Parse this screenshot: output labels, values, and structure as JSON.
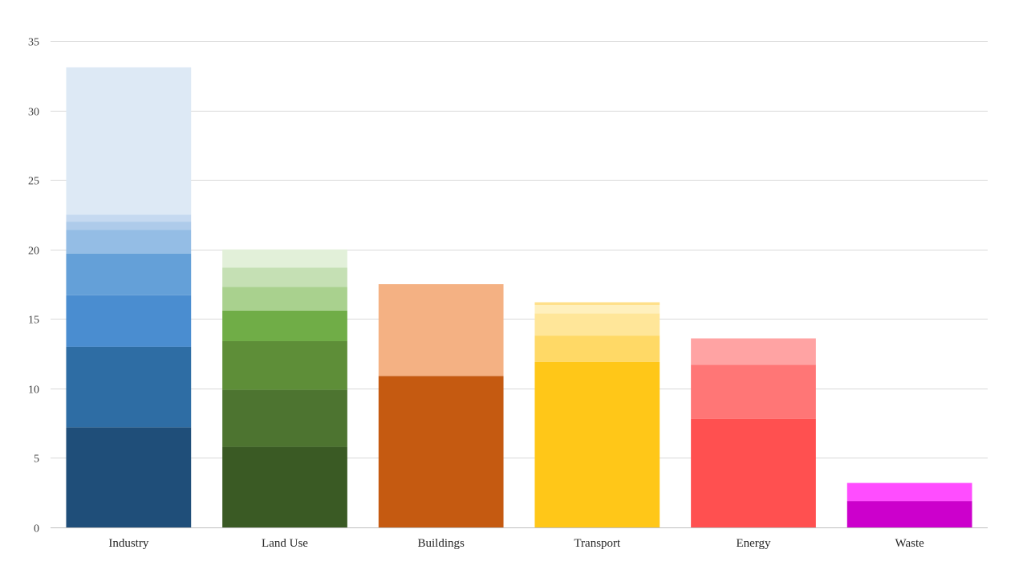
{
  "chart_data": {
    "type": "bar",
    "stacked": true,
    "title": "",
    "xlabel": "",
    "ylabel": "",
    "ylim": [
      0,
      35
    ],
    "yticks": [
      0,
      5,
      10,
      15,
      20,
      25,
      30,
      35
    ],
    "grid": true,
    "legend": "none",
    "categories": [
      {
        "label": "Industry",
        "segments": [
          {
            "value": 7.2,
            "color": "#1f4e79"
          },
          {
            "value": 5.8,
            "color": "#2e6da4"
          },
          {
            "value": 3.7,
            "color": "#4a8dd0"
          },
          {
            "value": 3.0,
            "color": "#64a0d8"
          },
          {
            "value": 1.7,
            "color": "#94bde5"
          },
          {
            "value": 0.6,
            "color": "#aecbea"
          },
          {
            "value": 0.5,
            "color": "#c5d9f0"
          },
          {
            "value": 10.6,
            "color": "#dde9f5"
          }
        ]
      },
      {
        "label": "Land Use",
        "segments": [
          {
            "value": 5.8,
            "color": "#3a5a24"
          },
          {
            "value": 4.1,
            "color": "#4d7430"
          },
          {
            "value": 3.5,
            "color": "#5e8e38"
          },
          {
            "value": 2.2,
            "color": "#70ad47"
          },
          {
            "value": 1.7,
            "color": "#a9d18e"
          },
          {
            "value": 1.4,
            "color": "#c5e0b4"
          },
          {
            "value": 1.3,
            "color": "#e2f0d9"
          }
        ]
      },
      {
        "label": "Buildings",
        "segments": [
          {
            "value": 10.9,
            "color": "#c55a11"
          },
          {
            "value": 6.6,
            "color": "#f4b183"
          }
        ]
      },
      {
        "label": "Transport",
        "segments": [
          {
            "value": 11.9,
            "color": "#ffc718"
          },
          {
            "value": 1.9,
            "color": "#ffd966"
          },
          {
            "value": 1.6,
            "color": "#ffe699"
          },
          {
            "value": 0.6,
            "color": "#fff0bd"
          },
          {
            "value": 0.2,
            "color": "#ffe08a"
          }
        ]
      },
      {
        "label": "Energy",
        "segments": [
          {
            "value": 7.8,
            "color": "#ff5050"
          },
          {
            "value": 3.9,
            "color": "#ff7676"
          },
          {
            "value": 1.9,
            "color": "#ffa3a3"
          }
        ]
      },
      {
        "label": "Waste",
        "segments": [
          {
            "value": 1.9,
            "color": "#cc00cc"
          },
          {
            "value": 1.3,
            "color": "#ff4dff"
          }
        ]
      }
    ]
  }
}
